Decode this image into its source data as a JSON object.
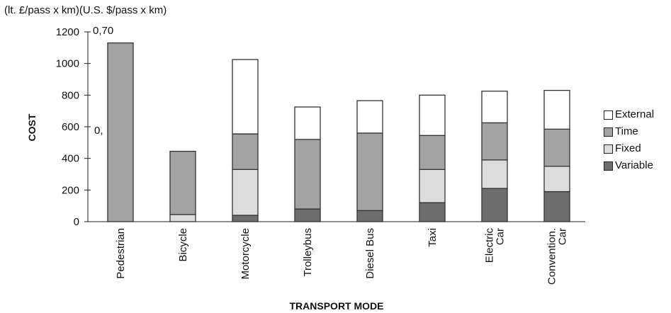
{
  "header": {
    "units_label": "(lt. £/pass x km)(U.S. $/pass x km)",
    "secondary_top_tick": "0,70",
    "secondary_mid_tick": "0,"
  },
  "chart_data": {
    "type": "bar",
    "stacked": true,
    "ylabel": "COST",
    "xlabel": "TRANSPORT MODE",
    "ylim": [
      0,
      1200
    ],
    "yticks": [
      0,
      200,
      400,
      600,
      800,
      1000,
      1200
    ],
    "categories": [
      "Pedestrian",
      "Bicycle",
      "Motorcycle",
      "Trolleybus",
      "Diesel Bus",
      "Taxi",
      "Electric Car",
      "Convention. Car"
    ],
    "category_lines": [
      [
        "Pedestrian"
      ],
      [
        "Bicycle"
      ],
      [
        "Motorcycle"
      ],
      [
        "Trolleybus"
      ],
      [
        "Diesel Bus"
      ],
      [
        "Taxi"
      ],
      [
        "Electric",
        "Car"
      ],
      [
        "Convention.",
        "Car"
      ]
    ],
    "series": [
      {
        "name": "Variable",
        "color": "#6e6e6e",
        "values": [
          0,
          0,
          40,
          80,
          70,
          120,
          210,
          190
        ]
      },
      {
        "name": "Fixed",
        "color": "#dcdcdc",
        "values": [
          0,
          45,
          290,
          0,
          0,
          210,
          180,
          160
        ]
      },
      {
        "name": "Time",
        "color": "#a3a3a3",
        "values": [
          1130,
          400,
          225,
          440,
          490,
          215,
          235,
          235
        ]
      },
      {
        "name": "External",
        "color": "#ffffff",
        "values": [
          0,
          0,
          470,
          205,
          205,
          255,
          200,
          245
        ]
      }
    ],
    "legend": [
      "External",
      "Time",
      "Fixed",
      "Variable"
    ],
    "legend_position": "right",
    "grid": false
  }
}
